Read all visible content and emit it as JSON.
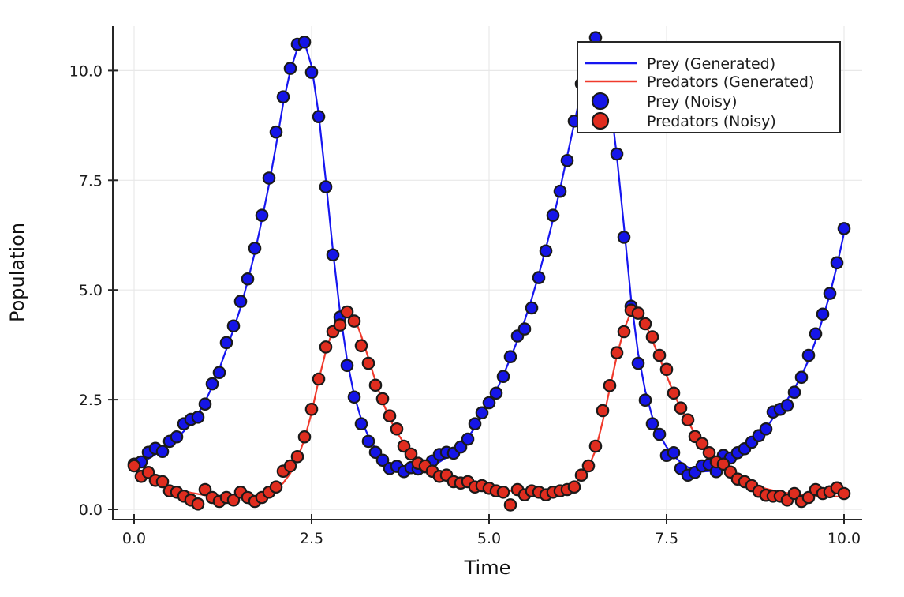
{
  "figure": {
    "background": "#ffffff"
  },
  "chart_data": {
    "type": "line+scatter",
    "xlabel": "Time",
    "ylabel": "Population",
    "xlim": [
      0.0,
      10.0
    ],
    "ylim": [
      0.0,
      11.0
    ],
    "grid": true,
    "legend_position": "top-right-inside",
    "xticks": [
      0,
      2.5,
      5,
      7.5,
      10
    ],
    "xtick_labels": [
      "0.0",
      "2.5",
      "5.0",
      "7.5",
      "10.0"
    ],
    "yticks": [
      0,
      2.5,
      5,
      7.5,
      10
    ],
    "ytick_labels": [
      "0.0",
      "2.5",
      "5.0",
      "7.5",
      "10.0"
    ],
    "style": {
      "grid_color": "#e8e8e8",
      "axis_color": "#262626",
      "marker_edge": "#1a1a1a",
      "prey_color": "#1616f0",
      "predator_color": "#e8342a"
    },
    "x": [
      0.0,
      0.1,
      0.2,
      0.3,
      0.4,
      0.5,
      0.6,
      0.7,
      0.8,
      0.9,
      1.0,
      1.1,
      1.2,
      1.3,
      1.4,
      1.5,
      1.6,
      1.7,
      1.8,
      1.9,
      2.0,
      2.1,
      2.2,
      2.3,
      2.4,
      2.5,
      2.6,
      2.7,
      2.8,
      2.9,
      3.0,
      3.1,
      3.2,
      3.3,
      3.4,
      3.5,
      3.6,
      3.7,
      3.8,
      3.9,
      4.0,
      4.1,
      4.2,
      4.3,
      4.4,
      4.5,
      4.6,
      4.7,
      4.8,
      4.9,
      5.0,
      5.1,
      5.2,
      5.3,
      5.4,
      5.5,
      5.6,
      5.7,
      5.8,
      5.9,
      6.0,
      6.1,
      6.2,
      6.3,
      6.4,
      6.5,
      6.6,
      6.7,
      6.8,
      6.9,
      7.0,
      7.1,
      7.2,
      7.3,
      7.4,
      7.5,
      7.6,
      7.7,
      7.8,
      7.9,
      8.0,
      8.1,
      8.2,
      8.3,
      8.4,
      8.5,
      8.6,
      8.7,
      8.8,
      8.9,
      9.0,
      9.1,
      9.2,
      9.3,
      9.4,
      9.5,
      9.6,
      9.7,
      9.8,
      9.9,
      10.0
    ],
    "series": [
      {
        "id": "prey-generated",
        "name": "Prey (Generated)",
        "kind": "line",
        "color": "#1616f0",
        "values": [
          1.0,
          1.07,
          1.15,
          1.25,
          1.36,
          1.48,
          1.62,
          1.78,
          1.96,
          2.18,
          2.45,
          2.8,
          3.2,
          3.65,
          4.1,
          4.6,
          5.2,
          5.85,
          6.6,
          7.4,
          8.3,
          9.25,
          10.0,
          10.5,
          10.65,
          10.1,
          9.0,
          7.5,
          5.9,
          4.5,
          3.4,
          2.6,
          2.05,
          1.66,
          1.38,
          1.18,
          1.04,
          0.95,
          0.9,
          0.88,
          0.9,
          0.94,
          1.0,
          1.08,
          1.18,
          1.31,
          1.46,
          1.64,
          1.86,
          2.12,
          2.4,
          2.7,
          3.05,
          3.45,
          3.85,
          4.3,
          4.8,
          5.35,
          5.95,
          6.6,
          7.3,
          8.05,
          8.8,
          9.55,
          10.25,
          10.7,
          10.35,
          9.4,
          8.05,
          6.45,
          4.8,
          3.55,
          2.7,
          2.1,
          1.7,
          1.42,
          1.22,
          1.07,
          0.96,
          0.89,
          0.86,
          0.87,
          0.91,
          0.97,
          1.06,
          1.17,
          1.3,
          1.45,
          1.63,
          1.84,
          2.08,
          2.28,
          2.5,
          2.75,
          3.05,
          3.4,
          3.85,
          4.35,
          4.9,
          5.55,
          6.3
        ]
      },
      {
        "id": "predators-generated",
        "name": "Predators (Generated)",
        "kind": "line",
        "color": "#f03a2c",
        "values": [
          1.0,
          0.86,
          0.75,
          0.66,
          0.58,
          0.52,
          0.46,
          0.42,
          0.38,
          0.35,
          0.32,
          0.3,
          0.29,
          0.28,
          0.27,
          0.27,
          0.28,
          0.3,
          0.32,
          0.37,
          0.45,
          0.6,
          0.82,
          1.15,
          1.6,
          2.2,
          2.95,
          3.6,
          4.1,
          4.4,
          4.55,
          4.4,
          3.95,
          3.45,
          2.92,
          2.45,
          2.07,
          1.76,
          1.51,
          1.3,
          1.13,
          1.0,
          0.9,
          0.81,
          0.74,
          0.68,
          0.63,
          0.58,
          0.54,
          0.51,
          0.48,
          0.46,
          0.44,
          0.42,
          0.41,
          0.4,
          0.39,
          0.39,
          0.4,
          0.41,
          0.43,
          0.48,
          0.58,
          0.73,
          0.95,
          1.35,
          2.0,
          2.75,
          3.5,
          4.1,
          4.5,
          4.5,
          4.25,
          3.85,
          3.45,
          3.05,
          2.65,
          2.3,
          2.0,
          1.73,
          1.5,
          1.3,
          1.12,
          0.97,
          0.85,
          0.75,
          0.66,
          0.59,
          0.52,
          0.47,
          0.43,
          0.4,
          0.37,
          0.35,
          0.33,
          0.32,
          0.31,
          0.3,
          0.3,
          0.29,
          0.29
        ]
      },
      {
        "id": "prey-noisy",
        "name": "Prey (Noisy)",
        "kind": "scatter",
        "color": "#1515e8",
        "values": [
          1.03,
          1.08,
          1.3,
          1.39,
          1.32,
          1.55,
          1.65,
          1.95,
          2.05,
          2.1,
          2.4,
          2.86,
          3.12,
          3.8,
          4.18,
          4.74,
          5.25,
          5.95,
          6.7,
          7.55,
          8.6,
          9.4,
          10.05,
          10.6,
          10.65,
          9.96,
          8.95,
          7.35,
          5.8,
          4.38,
          3.28,
          2.56,
          1.95,
          1.55,
          1.3,
          1.12,
          0.93,
          0.98,
          0.86,
          0.95,
          0.92,
          0.97,
          1.1,
          1.25,
          1.3,
          1.28,
          1.42,
          1.6,
          1.95,
          2.2,
          2.43,
          2.65,
          3.03,
          3.48,
          3.95,
          4.11,
          4.59,
          5.28,
          5.89,
          6.7,
          7.25,
          7.95,
          8.85,
          9.7,
          10.3,
          10.75,
          10.3,
          9.3,
          8.1,
          6.2,
          4.63,
          3.33,
          2.49,
          1.95,
          1.71,
          1.23,
          1.29,
          0.93,
          0.78,
          0.84,
          0.99,
          1.02,
          0.86,
          1.23,
          1.17,
          1.29,
          1.38,
          1.53,
          1.68,
          1.83,
          2.22,
          2.28,
          2.37,
          2.67,
          3.01,
          3.51,
          4.0,
          4.45,
          4.92,
          5.62,
          6.4
        ]
      },
      {
        "id": "predators-noisy",
        "name": "Predators (Noisy)",
        "kind": "scatter",
        "color": "#e02d1f",
        "values": [
          0.99,
          0.75,
          0.84,
          0.66,
          0.63,
          0.42,
          0.39,
          0.3,
          0.21,
          0.12,
          0.45,
          0.27,
          0.18,
          0.27,
          0.21,
          0.39,
          0.27,
          0.18,
          0.27,
          0.39,
          0.51,
          0.87,
          0.99,
          1.2,
          1.65,
          2.28,
          2.97,
          3.7,
          4.05,
          4.2,
          4.5,
          4.29,
          3.73,
          3.33,
          2.83,
          2.52,
          2.13,
          1.83,
          1.44,
          1.26,
          1.05,
          0.99,
          0.87,
          0.75,
          0.78,
          0.63,
          0.6,
          0.63,
          0.51,
          0.54,
          0.48,
          0.42,
          0.39,
          0.1,
          0.45,
          0.33,
          0.42,
          0.39,
          0.33,
          0.39,
          0.42,
          0.45,
          0.51,
          0.78,
          0.99,
          1.44,
          2.25,
          2.82,
          3.57,
          4.05,
          4.54,
          4.47,
          4.23,
          3.93,
          3.51,
          3.19,
          2.65,
          2.31,
          2.04,
          1.66,
          1.5,
          1.29,
          1.08,
          1.03,
          0.85,
          0.69,
          0.63,
          0.54,
          0.41,
          0.32,
          0.3,
          0.3,
          0.21,
          0.36,
          0.18,
          0.27,
          0.45,
          0.36,
          0.4,
          0.49,
          0.36
        ]
      }
    ]
  }
}
